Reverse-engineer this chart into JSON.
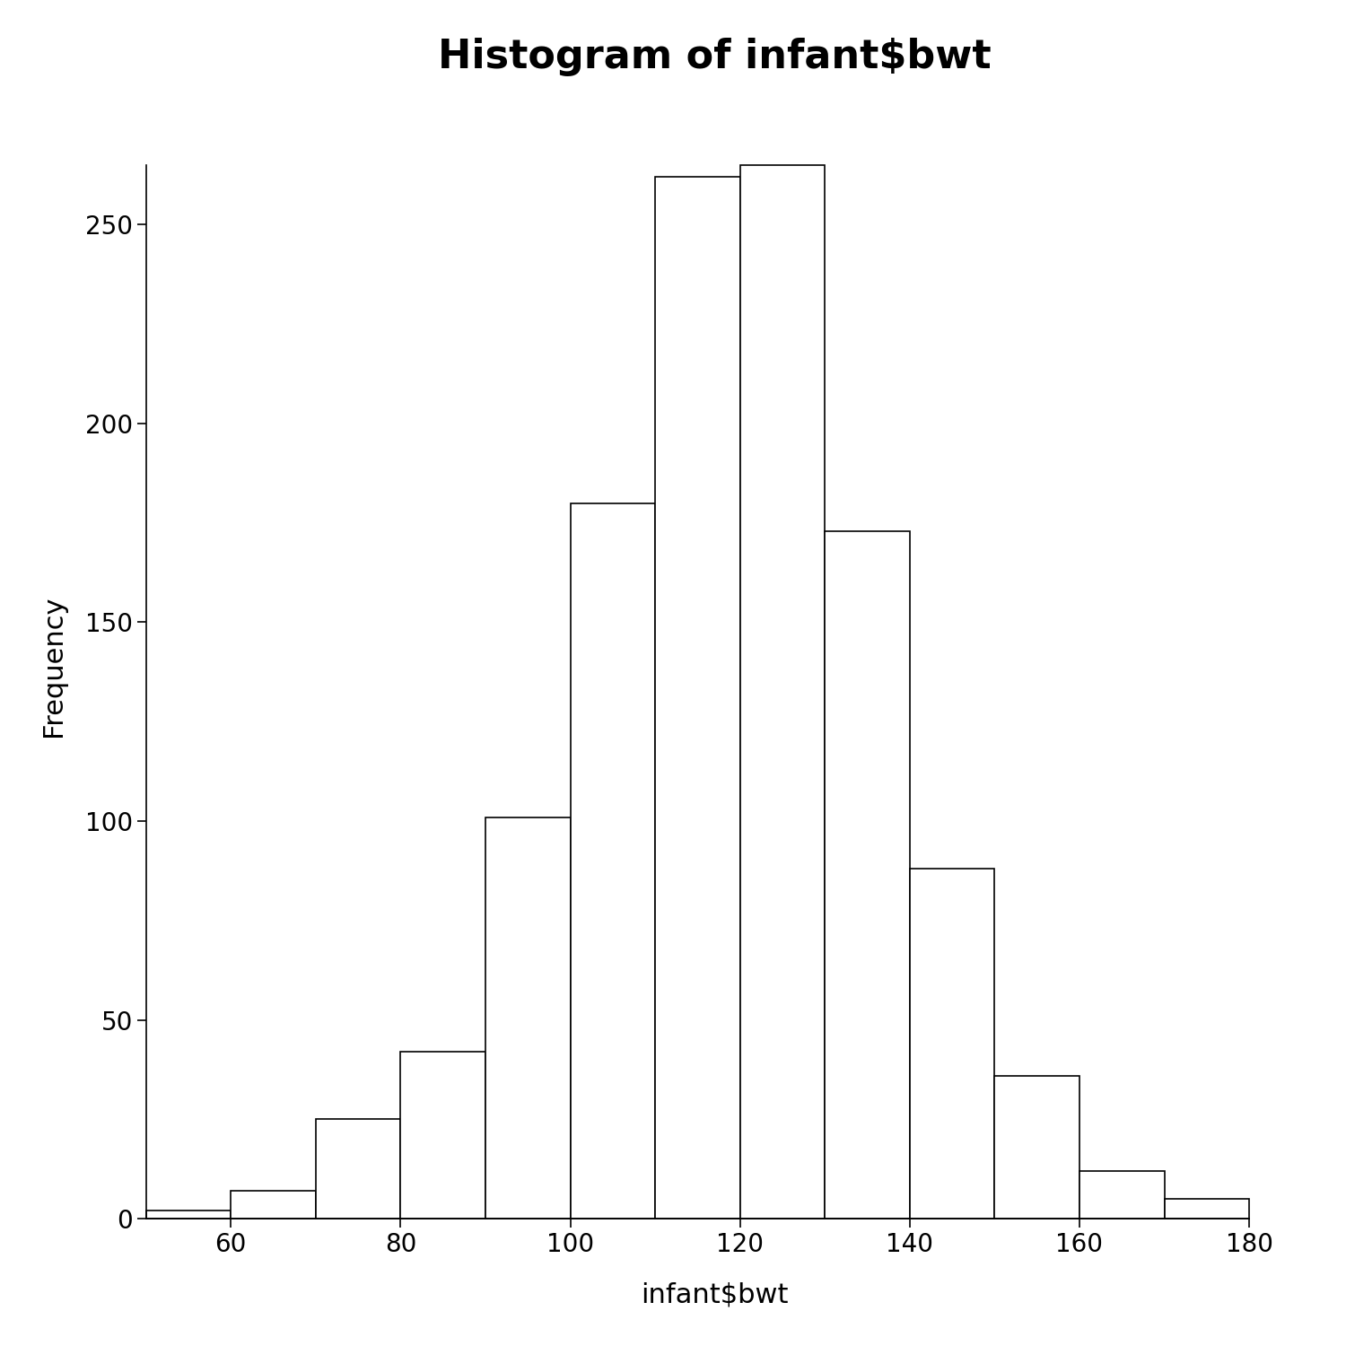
{
  "title": "Histogram of infant$bwt",
  "xlabel": "infant$bwt",
  "ylabel": "Frequency",
  "bin_edges": [
    50,
    60,
    70,
    80,
    90,
    100,
    110,
    120,
    130,
    140,
    150,
    160,
    170,
    180
  ],
  "frequencies": [
    2,
    7,
    25,
    42,
    101,
    180,
    262,
    265,
    173,
    88,
    36,
    12,
    5
  ],
  "xlim": [
    47,
    187
  ],
  "ylim": [
    -2,
    280
  ],
  "yticks": [
    0,
    50,
    100,
    150,
    200,
    250
  ],
  "xticks": [
    60,
    80,
    100,
    120,
    140,
    160,
    180
  ],
  "background_color": "#ffffff",
  "bar_facecolor": "white",
  "bar_edgecolor": "black",
  "title_fontsize": 32,
  "label_fontsize": 22,
  "tick_fontsize": 20
}
